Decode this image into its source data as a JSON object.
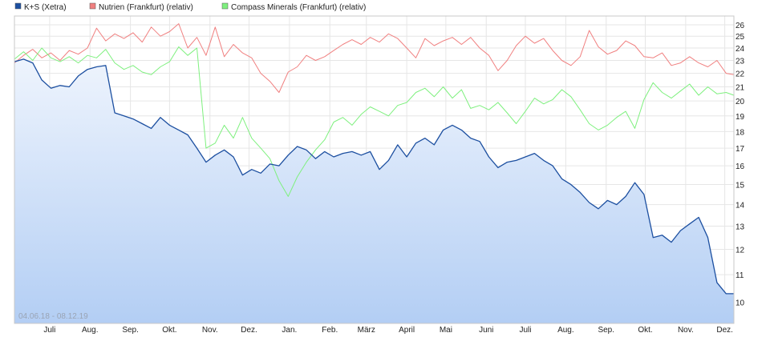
{
  "chart_data": {
    "type": "line",
    "date_range_label": "04.06.18 - 08.12.19",
    "x_start": "2018-06-04",
    "x_end": "2019-12-08",
    "ylim": [
      9.3,
      26.8
    ],
    "y_scale": "log",
    "yticks": [
      10,
      11,
      12,
      13,
      14,
      15,
      16,
      17,
      18,
      19,
      20,
      21,
      22,
      23,
      24,
      25,
      26
    ],
    "xticks": [
      {
        "label": "Juli",
        "date": "2018-07-01"
      },
      {
        "label": "Aug.",
        "date": "2018-08-01"
      },
      {
        "label": "Sep.",
        "date": "2018-09-01"
      },
      {
        "label": "Okt.",
        "date": "2018-10-01"
      },
      {
        "label": "Nov.",
        "date": "2018-11-01"
      },
      {
        "label": "Dez.",
        "date": "2018-12-01"
      },
      {
        "label": "Jan.",
        "date": "2019-01-01"
      },
      {
        "label": "Feb.",
        "date": "2019-02-01"
      },
      {
        "label": "März",
        "date": "2019-03-01"
      },
      {
        "label": "April",
        "date": "2019-04-01"
      },
      {
        "label": "Mai",
        "date": "2019-05-01"
      },
      {
        "label": "Juni",
        "date": "2019-06-01"
      },
      {
        "label": "Juli",
        "date": "2019-07-01"
      },
      {
        "label": "Aug.",
        "date": "2019-08-01"
      },
      {
        "label": "Sep.",
        "date": "2019-09-01"
      },
      {
        "label": "Okt.",
        "date": "2019-10-01"
      },
      {
        "label": "Nov.",
        "date": "2019-11-01"
      },
      {
        "label": "Dez.",
        "date": "2019-12-01"
      }
    ],
    "grid": true,
    "legend_position": "top-left",
    "series": [
      {
        "name": "K+S (Xetra)",
        "color": "#1c4fa0",
        "fill": true,
        "points": [
          [
            "2018-06-04",
            22.9
          ],
          [
            "2018-06-11",
            23.1
          ],
          [
            "2018-06-18",
            22.8
          ],
          [
            "2018-06-25",
            21.5
          ],
          [
            "2018-07-02",
            20.9
          ],
          [
            "2018-07-09",
            21.1
          ],
          [
            "2018-07-16",
            21.0
          ],
          [
            "2018-07-23",
            21.8
          ],
          [
            "2018-07-30",
            22.3
          ],
          [
            "2018-08-06",
            22.5
          ],
          [
            "2018-08-13",
            22.6
          ],
          [
            "2018-08-20",
            19.2
          ],
          [
            "2018-08-27",
            19.0
          ],
          [
            "2018-09-03",
            18.8
          ],
          [
            "2018-09-10",
            18.5
          ],
          [
            "2018-09-17",
            18.2
          ],
          [
            "2018-09-24",
            18.9
          ],
          [
            "2018-10-01",
            18.4
          ],
          [
            "2018-10-08",
            18.1
          ],
          [
            "2018-10-15",
            17.8
          ],
          [
            "2018-10-22",
            17.0
          ],
          [
            "2018-10-29",
            16.2
          ],
          [
            "2018-11-05",
            16.6
          ],
          [
            "2018-11-12",
            16.9
          ],
          [
            "2018-11-19",
            16.5
          ],
          [
            "2018-11-26",
            15.5
          ],
          [
            "2018-12-03",
            15.8
          ],
          [
            "2018-12-10",
            15.6
          ],
          [
            "2018-12-17",
            16.1
          ],
          [
            "2018-12-24",
            16.0
          ],
          [
            "2018-12-31",
            16.6
          ],
          [
            "2019-01-07",
            17.1
          ],
          [
            "2019-01-14",
            16.9
          ],
          [
            "2019-01-21",
            16.4
          ],
          [
            "2019-01-28",
            16.8
          ],
          [
            "2019-02-04",
            16.5
          ],
          [
            "2019-02-11",
            16.7
          ],
          [
            "2019-02-18",
            16.8
          ],
          [
            "2019-02-25",
            16.6
          ],
          [
            "2019-03-04",
            16.8
          ],
          [
            "2019-03-11",
            15.8
          ],
          [
            "2019-03-18",
            16.3
          ],
          [
            "2019-03-25",
            17.2
          ],
          [
            "2019-04-01",
            16.5
          ],
          [
            "2019-04-08",
            17.3
          ],
          [
            "2019-04-15",
            17.6
          ],
          [
            "2019-04-22",
            17.2
          ],
          [
            "2019-04-29",
            18.1
          ],
          [
            "2019-05-06",
            18.4
          ],
          [
            "2019-05-13",
            18.1
          ],
          [
            "2019-05-20",
            17.6
          ],
          [
            "2019-05-27",
            17.4
          ],
          [
            "2019-06-03",
            16.5
          ],
          [
            "2019-06-10",
            15.9
          ],
          [
            "2019-06-17",
            16.2
          ],
          [
            "2019-06-24",
            16.3
          ],
          [
            "2019-07-01",
            16.5
          ],
          [
            "2019-07-08",
            16.7
          ],
          [
            "2019-07-15",
            16.3
          ],
          [
            "2019-07-22",
            16.0
          ],
          [
            "2019-07-29",
            15.3
          ],
          [
            "2019-08-05",
            15.0
          ],
          [
            "2019-08-12",
            14.6
          ],
          [
            "2019-08-19",
            14.1
          ],
          [
            "2019-08-26",
            13.8
          ],
          [
            "2019-09-02",
            14.2
          ],
          [
            "2019-09-09",
            14.0
          ],
          [
            "2019-09-16",
            14.4
          ],
          [
            "2019-09-23",
            15.1
          ],
          [
            "2019-09-30",
            14.5
          ],
          [
            "2019-10-07",
            12.5
          ],
          [
            "2019-10-14",
            12.6
          ],
          [
            "2019-10-21",
            12.3
          ],
          [
            "2019-10-28",
            12.8
          ],
          [
            "2019-11-04",
            13.1
          ],
          [
            "2019-11-11",
            13.4
          ],
          [
            "2019-11-18",
            12.5
          ],
          [
            "2019-11-25",
            10.7
          ],
          [
            "2019-12-02",
            10.3
          ],
          [
            "2019-12-08",
            10.3
          ]
        ]
      },
      {
        "name": "Nutrien (Frankfurt) (relativ)",
        "color": "#f08080",
        "fill": false,
        "points": [
          [
            "2018-06-04",
            22.8
          ],
          [
            "2018-06-11",
            23.4
          ],
          [
            "2018-06-18",
            23.9
          ],
          [
            "2018-06-25",
            23.2
          ],
          [
            "2018-07-02",
            23.6
          ],
          [
            "2018-07-09",
            23.0
          ],
          [
            "2018-07-16",
            23.8
          ],
          [
            "2018-07-23",
            23.5
          ],
          [
            "2018-07-30",
            24.0
          ],
          [
            "2018-08-06",
            25.7
          ],
          [
            "2018-08-13",
            24.6
          ],
          [
            "2018-08-20",
            25.2
          ],
          [
            "2018-08-27",
            24.8
          ],
          [
            "2018-09-03",
            25.3
          ],
          [
            "2018-09-10",
            24.5
          ],
          [
            "2018-09-17",
            25.8
          ],
          [
            "2018-09-24",
            25.0
          ],
          [
            "2018-10-01",
            25.4
          ],
          [
            "2018-10-08",
            26.1
          ],
          [
            "2018-10-15",
            24.0
          ],
          [
            "2018-10-22",
            24.9
          ],
          [
            "2018-10-29",
            23.4
          ],
          [
            "2018-11-05",
            25.8
          ],
          [
            "2018-11-12",
            23.3
          ],
          [
            "2018-11-19",
            24.3
          ],
          [
            "2018-11-26",
            23.6
          ],
          [
            "2018-12-03",
            23.2
          ],
          [
            "2018-12-10",
            22.0
          ],
          [
            "2018-12-17",
            21.4
          ],
          [
            "2018-12-24",
            20.6
          ],
          [
            "2018-12-31",
            22.1
          ],
          [
            "2019-01-07",
            22.5
          ],
          [
            "2019-01-14",
            23.4
          ],
          [
            "2019-01-21",
            23.0
          ],
          [
            "2019-01-28",
            23.3
          ],
          [
            "2019-02-04",
            23.8
          ],
          [
            "2019-02-11",
            24.3
          ],
          [
            "2019-02-18",
            24.7
          ],
          [
            "2019-02-25",
            24.3
          ],
          [
            "2019-03-04",
            24.9
          ],
          [
            "2019-03-11",
            24.5
          ],
          [
            "2019-03-18",
            25.2
          ],
          [
            "2019-03-25",
            24.8
          ],
          [
            "2019-04-01",
            24.0
          ],
          [
            "2019-04-08",
            23.2
          ],
          [
            "2019-04-15",
            24.8
          ],
          [
            "2019-04-22",
            24.2
          ],
          [
            "2019-04-29",
            24.6
          ],
          [
            "2019-05-06",
            24.9
          ],
          [
            "2019-05-13",
            24.3
          ],
          [
            "2019-05-20",
            24.9
          ],
          [
            "2019-05-27",
            24.0
          ],
          [
            "2019-06-03",
            23.4
          ],
          [
            "2019-06-10",
            22.2
          ],
          [
            "2019-06-17",
            23.0
          ],
          [
            "2019-06-24",
            24.2
          ],
          [
            "2019-07-01",
            25.0
          ],
          [
            "2019-07-08",
            24.4
          ],
          [
            "2019-07-15",
            24.8
          ],
          [
            "2019-07-22",
            23.8
          ],
          [
            "2019-07-29",
            23.0
          ],
          [
            "2019-08-05",
            22.6
          ],
          [
            "2019-08-12",
            23.3
          ],
          [
            "2019-08-19",
            25.5
          ],
          [
            "2019-08-26",
            24.1
          ],
          [
            "2019-09-02",
            23.5
          ],
          [
            "2019-09-09",
            23.8
          ],
          [
            "2019-09-16",
            24.6
          ],
          [
            "2019-09-23",
            24.2
          ],
          [
            "2019-09-30",
            23.3
          ],
          [
            "2019-10-07",
            23.2
          ],
          [
            "2019-10-14",
            23.6
          ],
          [
            "2019-10-21",
            22.6
          ],
          [
            "2019-10-28",
            22.8
          ],
          [
            "2019-11-04",
            23.3
          ],
          [
            "2019-11-11",
            22.8
          ],
          [
            "2019-11-18",
            22.5
          ],
          [
            "2019-11-25",
            23.0
          ],
          [
            "2019-12-02",
            22.0
          ],
          [
            "2019-12-08",
            21.9
          ]
        ]
      },
      {
        "name": "Compass Minerals (Frankfurt) (relativ)",
        "color": "#7ef07e",
        "fill": false,
        "points": [
          [
            "2018-06-04",
            23.1
          ],
          [
            "2018-06-11",
            23.7
          ],
          [
            "2018-06-18",
            23.0
          ],
          [
            "2018-06-25",
            24.0
          ],
          [
            "2018-07-02",
            23.2
          ],
          [
            "2018-07-09",
            22.9
          ],
          [
            "2018-07-16",
            23.3
          ],
          [
            "2018-07-23",
            22.8
          ],
          [
            "2018-07-30",
            23.4
          ],
          [
            "2018-08-06",
            23.2
          ],
          [
            "2018-08-13",
            23.9
          ],
          [
            "2018-08-20",
            22.8
          ],
          [
            "2018-08-27",
            22.3
          ],
          [
            "2018-09-03",
            22.6
          ],
          [
            "2018-09-10",
            22.1
          ],
          [
            "2018-09-17",
            21.9
          ],
          [
            "2018-09-24",
            22.5
          ],
          [
            "2018-10-01",
            22.9
          ],
          [
            "2018-10-08",
            24.1
          ],
          [
            "2018-10-15",
            23.4
          ],
          [
            "2018-10-22",
            24.0
          ],
          [
            "2018-10-29",
            17.0
          ],
          [
            "2018-11-05",
            17.3
          ],
          [
            "2018-11-12",
            18.4
          ],
          [
            "2018-11-19",
            17.6
          ],
          [
            "2018-11-26",
            18.9
          ],
          [
            "2018-12-03",
            17.6
          ],
          [
            "2018-12-10",
            17.0
          ],
          [
            "2018-12-17",
            16.4
          ],
          [
            "2018-12-24",
            15.2
          ],
          [
            "2018-12-31",
            14.4
          ],
          [
            "2019-01-07",
            15.4
          ],
          [
            "2019-01-14",
            16.2
          ],
          [
            "2019-01-21",
            16.9
          ],
          [
            "2019-01-28",
            17.5
          ],
          [
            "2019-02-04",
            18.6
          ],
          [
            "2019-02-11",
            18.9
          ],
          [
            "2019-02-18",
            18.4
          ],
          [
            "2019-02-25",
            19.1
          ],
          [
            "2019-03-04",
            19.6
          ],
          [
            "2019-03-11",
            19.3
          ],
          [
            "2019-03-18",
            19.0
          ],
          [
            "2019-03-25",
            19.7
          ],
          [
            "2019-04-01",
            19.9
          ],
          [
            "2019-04-08",
            20.6
          ],
          [
            "2019-04-15",
            20.9
          ],
          [
            "2019-04-22",
            20.3
          ],
          [
            "2019-04-29",
            21.0
          ],
          [
            "2019-05-06",
            20.2
          ],
          [
            "2019-05-13",
            20.8
          ],
          [
            "2019-05-20",
            19.5
          ],
          [
            "2019-05-27",
            19.7
          ],
          [
            "2019-06-03",
            19.4
          ],
          [
            "2019-06-10",
            19.9
          ],
          [
            "2019-06-17",
            19.2
          ],
          [
            "2019-06-24",
            18.5
          ],
          [
            "2019-07-01",
            19.3
          ],
          [
            "2019-07-08",
            20.2
          ],
          [
            "2019-07-15",
            19.8
          ],
          [
            "2019-07-22",
            20.1
          ],
          [
            "2019-07-29",
            20.8
          ],
          [
            "2019-08-05",
            20.3
          ],
          [
            "2019-08-12",
            19.4
          ],
          [
            "2019-08-19",
            18.5
          ],
          [
            "2019-08-26",
            18.1
          ],
          [
            "2019-09-02",
            18.4
          ],
          [
            "2019-09-09",
            18.9
          ],
          [
            "2019-09-16",
            19.3
          ],
          [
            "2019-09-23",
            18.2
          ],
          [
            "2019-09-30",
            20.1
          ],
          [
            "2019-10-07",
            21.3
          ],
          [
            "2019-10-14",
            20.6
          ],
          [
            "2019-10-21",
            20.2
          ],
          [
            "2019-10-28",
            20.7
          ],
          [
            "2019-11-04",
            21.2
          ],
          [
            "2019-11-11",
            20.4
          ],
          [
            "2019-11-18",
            21.0
          ],
          [
            "2019-11-25",
            20.5
          ],
          [
            "2019-12-02",
            20.6
          ],
          [
            "2019-12-08",
            20.4
          ]
        ]
      }
    ]
  }
}
